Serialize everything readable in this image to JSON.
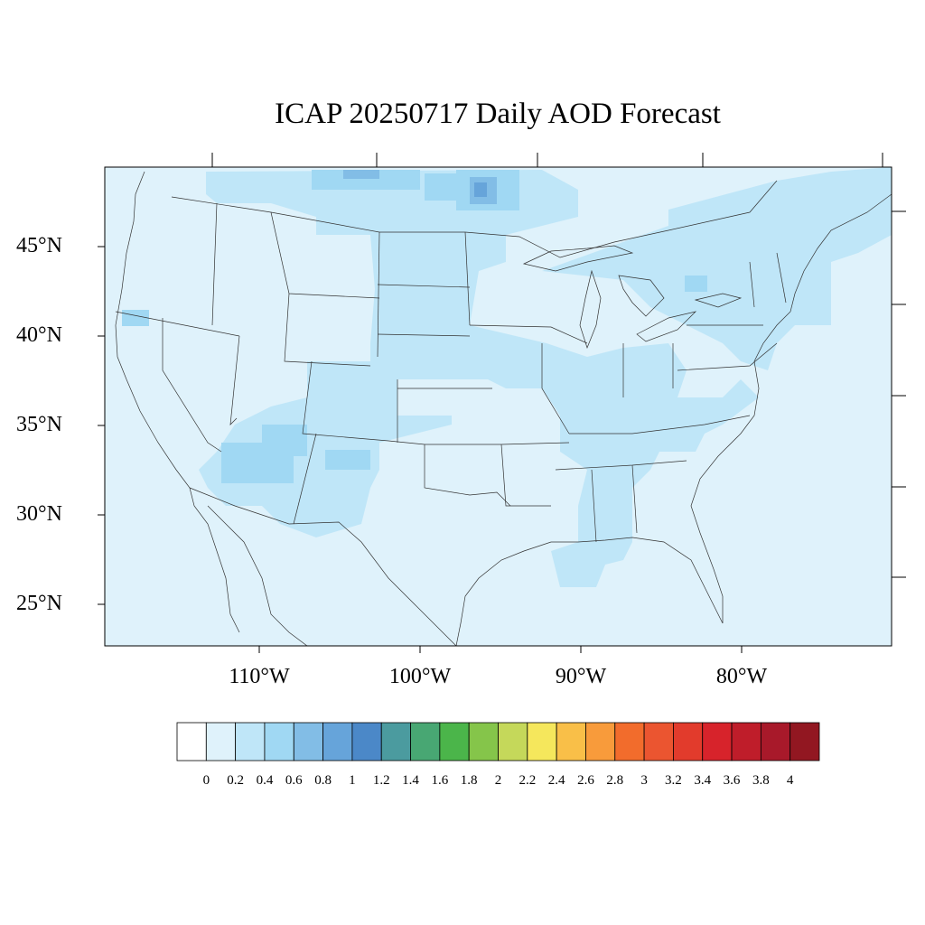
{
  "title": "ICAP 20250717 Daily AOD Forecast",
  "lat_labels": [
    "45°N",
    "40°N",
    "35°N",
    "30°N",
    "25°N"
  ],
  "lon_labels": [
    "110°W",
    "100°W",
    "90°W",
    "80°W"
  ],
  "colorbar": {
    "labels": [
      "0",
      "0.2",
      "0.4",
      "0.6",
      "0.8",
      "1",
      "1.2",
      "1.4",
      "1.6",
      "1.8",
      "2",
      "2.2",
      "2.4",
      "2.6",
      "2.8",
      "3",
      "3.2",
      "3.4",
      "3.6",
      "3.8",
      "4"
    ],
    "colors": [
      "#ffffff",
      "#dff2fb",
      "#bfe6f8",
      "#a0d8f3",
      "#82bde6",
      "#66a4da",
      "#4b88c8",
      "#4b9b9f",
      "#48a773",
      "#4bb54a",
      "#85c54a",
      "#c5d85a",
      "#f5e75c",
      "#f9bf48",
      "#f89b3b",
      "#f26c2c",
      "#eb5530",
      "#e23b2c",
      "#d7232b",
      "#bf1d2a",
      "#a8192a",
      "#921721"
    ]
  },
  "colors": {
    "background_aod": "#dff2fb",
    "light_aod": "#bfe6f8",
    "medium_aod": "#a0d8f3",
    "high_aod": "#82bde6",
    "peak_aod": "#66a4da"
  }
}
